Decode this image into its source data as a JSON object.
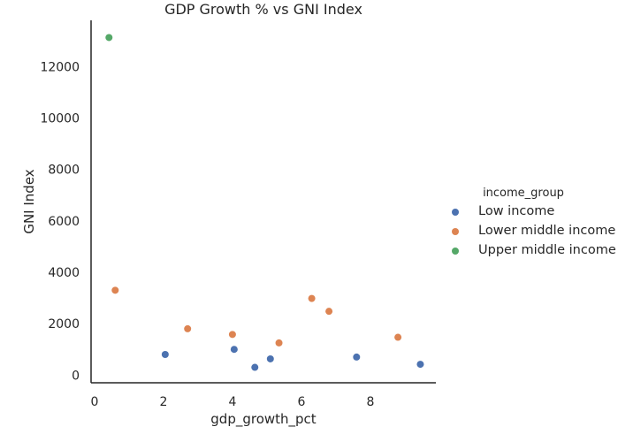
{
  "chart_data": {
    "type": "scatter",
    "title": "GDP Growth % vs GNI Index",
    "xlabel": "gdp_growth_pct",
    "ylabel": "GNI Index",
    "xlim": [
      -0.1,
      9.9
    ],
    "ylim": [
      -300,
      13800
    ],
    "x_ticks": [
      0,
      2,
      4,
      6,
      8
    ],
    "y_ticks": [
      0,
      2000,
      4000,
      6000,
      8000,
      10000,
      12000
    ],
    "grid": false,
    "legend": {
      "title": "income_group",
      "placement": "right"
    },
    "series": [
      {
        "name": "Low income",
        "color": "#4c72b0",
        "points": [
          {
            "x": 2.05,
            "y": 800
          },
          {
            "x": 4.05,
            "y": 1000
          },
          {
            "x": 4.65,
            "y": 300
          },
          {
            "x": 5.1,
            "y": 630
          },
          {
            "x": 7.6,
            "y": 700
          },
          {
            "x": 9.45,
            "y": 420
          }
        ]
      },
      {
        "name": "Lower middle income",
        "color": "#dd8452",
        "points": [
          {
            "x": 0.6,
            "y": 3300
          },
          {
            "x": 2.7,
            "y": 1800
          },
          {
            "x": 4.0,
            "y": 1580
          },
          {
            "x": 5.35,
            "y": 1250
          },
          {
            "x": 6.3,
            "y": 2980
          },
          {
            "x": 6.8,
            "y": 2480
          },
          {
            "x": 8.8,
            "y": 1470
          }
        ]
      },
      {
        "name": "Upper middle income",
        "color": "#55a868",
        "points": [
          {
            "x": 0.42,
            "y": 13130
          }
        ]
      }
    ]
  }
}
